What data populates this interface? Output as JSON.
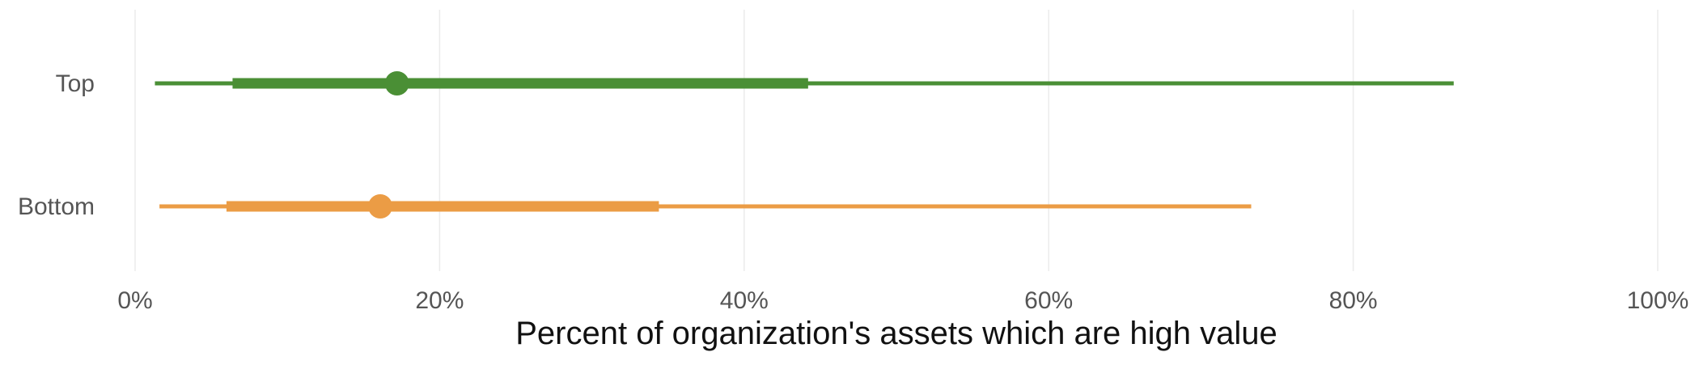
{
  "chart_data": {
    "type": "interval",
    "xlabel": "Percent of organization's assets which are high value",
    "ylabel": "",
    "xlim": [
      0,
      100
    ],
    "x_ticks": [
      0,
      20,
      40,
      60,
      80,
      100
    ],
    "x_tick_labels": [
      "0%",
      "20%",
      "40%",
      "60%",
      "80%",
      "100%"
    ],
    "grid": true,
    "categories": [
      "Top",
      "Bottom"
    ],
    "series": [
      {
        "category": "Top",
        "color": "#4a8f35",
        "outer_low": 1.3,
        "inner_low": 6.4,
        "point": 17.2,
        "inner_high": 44.2,
        "outer_high": 86.6
      },
      {
        "category": "Bottom",
        "color": "#eb9c45",
        "outer_low": 1.6,
        "inner_low": 6.0,
        "point": 16.1,
        "inner_high": 34.4,
        "outer_high": 73.3
      }
    ]
  }
}
